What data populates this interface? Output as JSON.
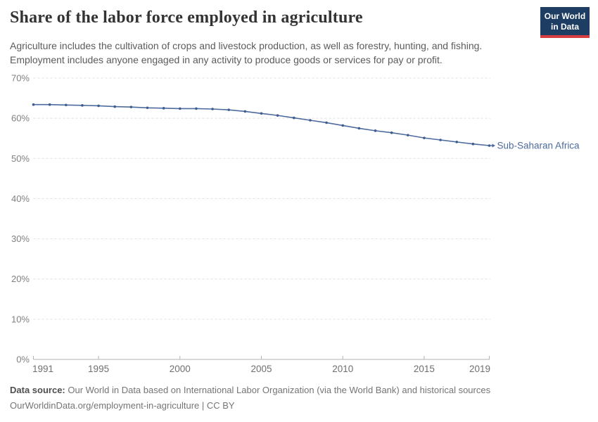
{
  "header": {
    "title": "Share of the labor force employed in agriculture",
    "subtitle_lines": [
      "Agriculture includes the cultivation of crops and livestock production, as well as forestry, hunting, and fishing.",
      "Employment includes anyone engaged in any activity to produce goods or services for pay or profit."
    ],
    "logo": {
      "line1": "Our World",
      "line2": "in Data",
      "bg_color": "#1d3d63",
      "bar_color": "#d73e41"
    }
  },
  "chart_data": {
    "type": "line",
    "title": "Share of the labor force employed in agriculture",
    "x": [
      1991,
      1992,
      1993,
      1994,
      1995,
      1996,
      1997,
      1998,
      1999,
      2000,
      2001,
      2002,
      2003,
      2004,
      2005,
      2006,
      2007,
      2008,
      2009,
      2010,
      2011,
      2012,
      2013,
      2014,
      2015,
      2016,
      2017,
      2018,
      2019
    ],
    "series": [
      {
        "name": "Sub-Saharan Africa",
        "values": [
          63.4,
          63.4,
          63.3,
          63.2,
          63.1,
          62.9,
          62.8,
          62.6,
          62.5,
          62.4,
          62.4,
          62.3,
          62.1,
          61.7,
          61.2,
          60.7,
          60.1,
          59.5,
          58.9,
          58.2,
          57.5,
          56.9,
          56.4,
          55.8,
          55.1,
          54.6,
          54.1,
          53.6,
          53.2
        ]
      }
    ],
    "unit": "%",
    "ylim": [
      0,
      70
    ],
    "yticks": [
      0,
      10,
      20,
      30,
      40,
      50,
      60,
      70
    ],
    "xticks": [
      1991,
      1995,
      2000,
      2005,
      2010,
      2015,
      2019
    ],
    "grid": "dashed-horizontal",
    "legend_position": "end-of-line-label",
    "colors": {
      "line": "#4d6b9e",
      "point": "#3e5c8f",
      "series_label": "#4d6b9e",
      "gridline": "#e0e0e0",
      "axis": "#b3b3b3",
      "y_tick_text": "#818181",
      "x_tick_text": "#6f6f6f"
    }
  },
  "footer": {
    "datasource_label": "Data source:",
    "datasource_text": " Our World in Data based on International Labor Organization (via the World Bank) and historical sources",
    "link_line": "OurWorldinData.org/employment-in-agriculture | CC BY"
  }
}
